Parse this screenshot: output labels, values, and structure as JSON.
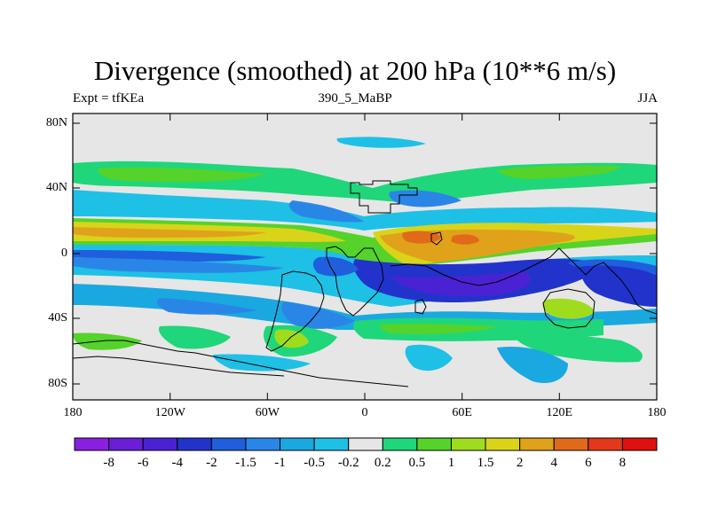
{
  "title": "Divergence (smoothed) at 200 hPa (10**6 m/s)",
  "subtitle_left": "Expt = tfKEa",
  "subtitle_center": "390_5_MaBP",
  "subtitle_right": "JJA",
  "lat_labels": [
    "80N",
    "40N",
    "0",
    "40S",
    "80S"
  ],
  "lon_labels": [
    "180",
    "120W",
    "60W",
    "0",
    "60E",
    "120E",
    "180"
  ],
  "colorbar": {
    "labels": [
      "-8",
      "-6",
      "-4",
      "-2",
      "-1.5",
      "-1",
      "-0.5",
      "-0.2",
      "0.2",
      "0.5",
      "1",
      "1.5",
      "2",
      "4",
      "6",
      "8"
    ],
    "colors": [
      "#8a1fe0",
      "#6a1ed8",
      "#4a22d4",
      "#2233cc",
      "#1f5fdd",
      "#2a86e6",
      "#1aa8e0",
      "#1ec0e6",
      "#e6e6e6",
      "#1fd67a",
      "#55d32a",
      "#a0dc1e",
      "#d9d41a",
      "#e0a21a",
      "#e06a1a",
      "#e3381a",
      "#e01010"
    ]
  }
}
